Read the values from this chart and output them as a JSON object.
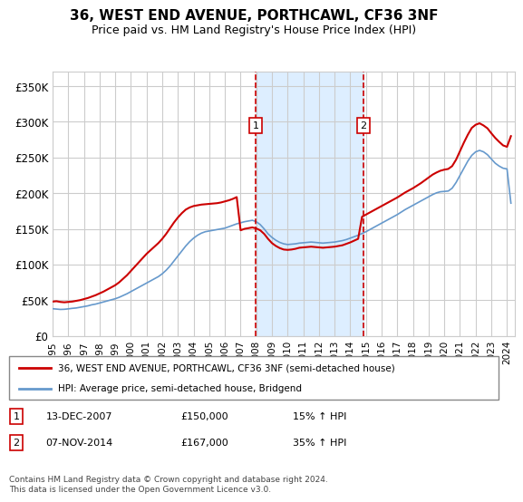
{
  "title": "36, WEST END AVENUE, PORTHCAWL, CF36 3NF",
  "subtitle": "Price paid vs. HM Land Registry's House Price Index (HPI)",
  "ylabel_ticks": [
    "£0",
    "£50K",
    "£100K",
    "£150K",
    "£200K",
    "£250K",
    "£300K",
    "£350K"
  ],
  "ytick_values": [
    0,
    50000,
    100000,
    150000,
    200000,
    250000,
    300000,
    350000
  ],
  "ylim": [
    0,
    370000
  ],
  "xlim_start": 1995.0,
  "xlim_end": 2024.5,
  "event1": {
    "x": 2007.95,
    "label": "1",
    "date": "13-DEC-2007",
    "price": "£150,000",
    "pct": "15% ↑ HPI"
  },
  "event2": {
    "x": 2014.85,
    "label": "2",
    "date": "07-NOV-2014",
    "price": "£167,000",
    "pct": "35% ↑ HPI"
  },
  "legend_line1": "36, WEST END AVENUE, PORTHCAWL, CF36 3NF (semi-detached house)",
  "legend_line2": "HPI: Average price, semi-detached house, Bridgend",
  "footer": "Contains HM Land Registry data © Crown copyright and database right 2024.\nThis data is licensed under the Open Government Licence v3.0.",
  "red_color": "#cc0000",
  "blue_color": "#6699cc",
  "shade_color": "#ddeeff",
  "grid_color": "#cccccc",
  "hpi_years": [
    1995,
    1995.25,
    1995.5,
    1995.75,
    1996,
    1996.25,
    1996.5,
    1996.75,
    1997,
    1997.25,
    1997.5,
    1997.75,
    1998,
    1998.25,
    1998.5,
    1998.75,
    1999,
    1999.25,
    1999.5,
    1999.75,
    2000,
    2000.25,
    2000.5,
    2000.75,
    2001,
    2001.25,
    2001.5,
    2001.75,
    2002,
    2002.25,
    2002.5,
    2002.75,
    2003,
    2003.25,
    2003.5,
    2003.75,
    2004,
    2004.25,
    2004.5,
    2004.75,
    2005,
    2005.25,
    2005.5,
    2005.75,
    2006,
    2006.25,
    2006.5,
    2006.75,
    2007,
    2007.25,
    2007.5,
    2007.75,
    2008,
    2008.25,
    2008.5,
    2008.75,
    2009,
    2009.25,
    2009.5,
    2009.75,
    2010,
    2010.25,
    2010.5,
    2010.75,
    2011,
    2011.25,
    2011.5,
    2011.75,
    2012,
    2012.25,
    2012.5,
    2012.75,
    2013,
    2013.25,
    2013.5,
    2013.75,
    2014,
    2014.25,
    2014.5,
    2014.75,
    2015,
    2015.25,
    2015.5,
    2015.75,
    2016,
    2016.25,
    2016.5,
    2016.75,
    2017,
    2017.25,
    2017.5,
    2017.75,
    2018,
    2018.25,
    2018.5,
    2018.75,
    2019,
    2019.25,
    2019.5,
    2019.75,
    2020,
    2020.25,
    2020.5,
    2020.75,
    2021,
    2021.25,
    2021.5,
    2021.75,
    2022,
    2022.25,
    2022.5,
    2022.75,
    2023,
    2023.25,
    2023.5,
    2023.75,
    2024,
    2024.25
  ],
  "hpi_values": [
    38000,
    37500,
    37000,
    37200,
    37800,
    38500,
    39000,
    40000,
    41000,
    42000,
    43500,
    44500,
    46000,
    47500,
    49000,
    50500,
    52000,
    54000,
    56500,
    59000,
    62000,
    65000,
    68000,
    71000,
    74000,
    77000,
    80000,
    83000,
    87000,
    92000,
    98000,
    105000,
    112000,
    119000,
    126000,
    132000,
    137000,
    141000,
    144000,
    146000,
    147000,
    148000,
    149000,
    150000,
    151000,
    153000,
    155000,
    157000,
    158500,
    160000,
    161000,
    162000,
    160000,
    156000,
    150000,
    143000,
    138000,
    134000,
    131000,
    129000,
    128000,
    128500,
    129000,
    130000,
    130500,
    131000,
    131500,
    131000,
    130500,
    130000,
    130500,
    131000,
    131500,
    132500,
    133500,
    135000,
    137000,
    139000,
    141000,
    143500,
    146000,
    149000,
    152000,
    155000,
    158000,
    161000,
    164000,
    167000,
    170000,
    173500,
    177000,
    180000,
    183000,
    186000,
    189000,
    192000,
    195000,
    198000,
    200500,
    202000,
    202500,
    203000,
    207000,
    215000,
    225000,
    235000,
    245000,
    253000,
    258000,
    260000,
    258000,
    254000,
    248000,
    242000,
    238000,
    235000,
    234000,
    186000
  ],
  "red_years": [
    1995,
    1995.25,
    1995.5,
    1995.75,
    1996,
    1996.25,
    1996.5,
    1996.75,
    1997,
    1997.25,
    1997.5,
    1997.75,
    1998,
    1998.25,
    1998.5,
    1998.75,
    1999,
    1999.25,
    1999.5,
    1999.75,
    2000,
    2000.25,
    2000.5,
    2000.75,
    2001,
    2001.25,
    2001.5,
    2001.75,
    2002,
    2002.25,
    2002.5,
    2002.75,
    2003,
    2003.25,
    2003.5,
    2003.75,
    2004,
    2004.25,
    2004.5,
    2004.75,
    2005,
    2005.25,
    2005.5,
    2005.75,
    2006,
    2006.25,
    2006.5,
    2006.75,
    2007,
    2007.25,
    2007.5,
    2007.75,
    2008,
    2008.25,
    2008.5,
    2008.75,
    2009,
    2009.25,
    2009.5,
    2009.75,
    2010,
    2010.25,
    2010.5,
    2010.75,
    2011,
    2011.25,
    2011.5,
    2011.75,
    2012,
    2012.25,
    2012.5,
    2012.75,
    2013,
    2013.25,
    2013.5,
    2013.75,
    2014,
    2014.25,
    2014.5,
    2014.75,
    2015,
    2015.25,
    2015.5,
    2015.75,
    2016,
    2016.25,
    2016.5,
    2016.75,
    2017,
    2017.25,
    2017.5,
    2017.75,
    2018,
    2018.25,
    2018.5,
    2018.75,
    2019,
    2019.25,
    2019.5,
    2019.75,
    2020,
    2020.25,
    2020.5,
    2020.75,
    2021,
    2021.25,
    2021.5,
    2021.75,
    2022,
    2022.25,
    2022.5,
    2022.75,
    2023,
    2023.25,
    2023.5,
    2023.75,
    2024,
    2024.25
  ],
  "red_values": [
    48000,
    48500,
    47500,
    47000,
    47500,
    48000,
    49000,
    50000,
    51500,
    53000,
    55000,
    57000,
    59500,
    62000,
    65000,
    68000,
    71000,
    75000,
    80000,
    85000,
    91000,
    97000,
    103000,
    109000,
    115000,
    120000,
    125000,
    130000,
    136000,
    143000,
    151000,
    159000,
    166000,
    172000,
    177000,
    180000,
    182000,
    183000,
    184000,
    184500,
    185000,
    185500,
    186000,
    187000,
    188500,
    190000,
    192000,
    194500,
    148000,
    150000,
    151000,
    152000,
    150500,
    148000,
    143000,
    136000,
    130000,
    126000,
    123000,
    121000,
    120500,
    121000,
    122000,
    123500,
    124000,
    124500,
    125000,
    124500,
    124000,
    123500,
    124000,
    124500,
    125000,
    126000,
    127000,
    129000,
    131000,
    133500,
    136000,
    167000,
    170000,
    173000,
    176000,
    179000,
    182000,
    185000,
    188000,
    191000,
    194000,
    197500,
    201000,
    204000,
    207000,
    210500,
    214000,
    218000,
    222000,
    226000,
    229000,
    231500,
    233000,
    234000,
    238000,
    247000,
    259000,
    271000,
    282000,
    291500,
    296000,
    298000,
    295000,
    291000,
    284000,
    277500,
    272000,
    267000,
    265000,
    280000
  ]
}
